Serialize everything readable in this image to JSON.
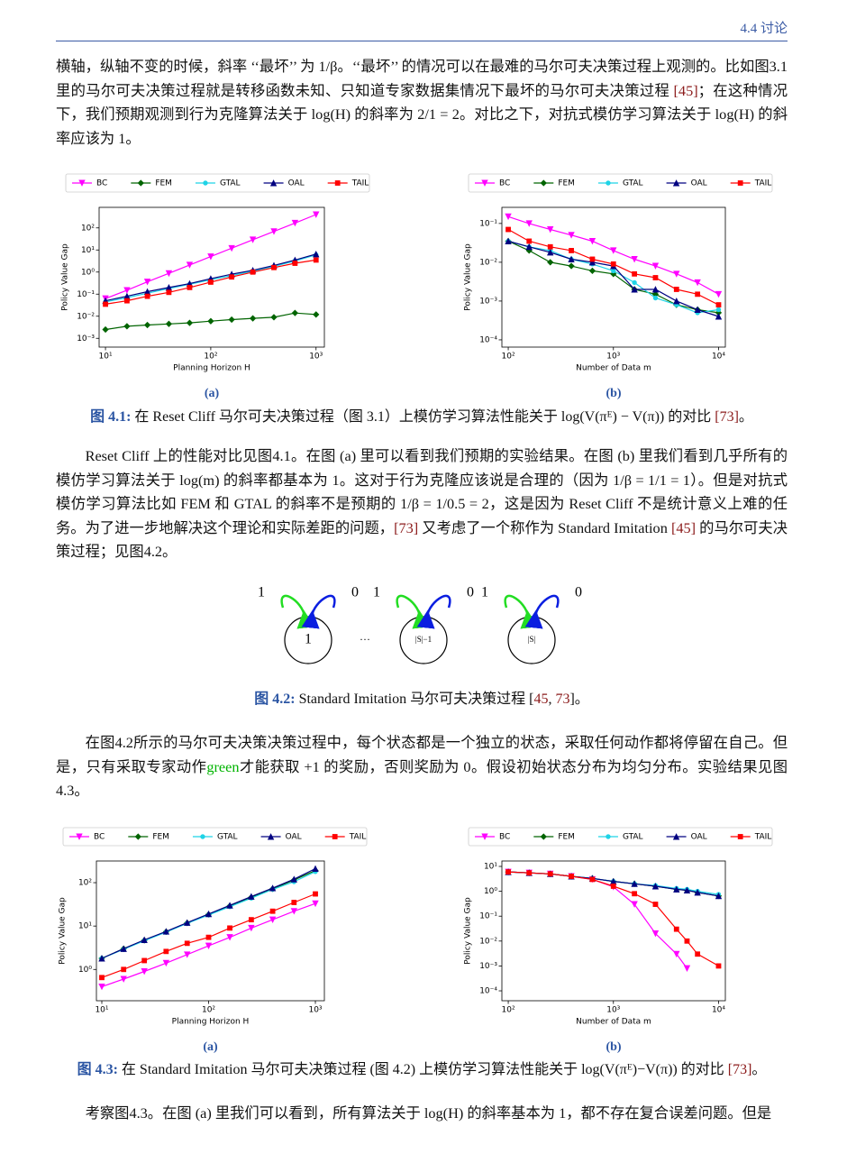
{
  "header": {
    "title": "4.4 讨论"
  },
  "paragraphs": [
    [
      "横轴，纵轴不变的时候，斜率 ‘‘最坏’’ 为 1/β。‘‘最坏’’ 的情况可以在最难的马尔可夫决策过程上观测的。比如图3.1里的马尔可夫决策过程就是转移函数未知、只知道专家数据集情况下最坏的马尔可夫决策过程 ",
      {
        "text": "[45]",
        "kind": "cite"
      },
      "；在这种情况下，我们预期观测到行为克隆算法关于 log(H) 的斜率为 2/1 = 2。对比之下，对抗式模仿学习算法关于 log(H) 的斜率应该为 1。"
    ],
    [
      "Reset Cliff 上的性能对比见图4.1。在图 (a) 里可以看到我们预期的实验结果。在图 (b) 里我们看到几乎所有的模仿学习算法关于 log(m) 的斜率都基本为 1。这对于行为克隆应该说是合理的（因为 1/β = 1/1 = 1）。但是对抗式模仿学习算法比如 FEM 和 GTAL 的斜率不是预期的 1/β = 1/0.5 = 2，这是因为 Reset Cliff 不是统计意义上难的任务。为了进一步地解决这个理论和实际差距的问题，",
      {
        "text": "[73]",
        "kind": "cite"
      },
      " 又考虑了一个称作为 Standard Imitation ",
      {
        "text": "[45]",
        "kind": "cite"
      },
      " 的马尔可夫决策过程；见图4.2。"
    ],
    [
      "在图4.2所示的马尔可夫决策决策过程中，每个状态都是一个独立的状态，采取任何动作都将停留在自己。但是，只有采取专家动作",
      {
        "text": "green",
        "kind": "green"
      },
      "才能获取 +1 的奖励，否则奖励为 0。假设初始状态分布为均匀分布。实验结果见图4.3。"
    ],
    [
      "考察图4.3。在图 (a) 里我们可以看到，所有算法关于 log(H) 的斜率基本为 1，都不存在复合误差问题。但是"
    ]
  ],
  "captions": [
    [
      {
        "text": "图 4.1:",
        "kind": "figlabel"
      },
      " 在 Reset Cliff 马尔可夫决策过程（图 3.1）上模仿学习算法性能关于 log(V(πᴱ) − V(π)) 的对比 ",
      {
        "text": "[73]",
        "kind": "cite"
      },
      "。"
    ],
    [
      {
        "text": "图 4.2:",
        "kind": "figlabel"
      },
      " Standard Imitation 马尔可夫决策过程 [",
      {
        "text": "45",
        "kind": "cite"
      },
      ", ",
      {
        "text": "73",
        "kind": "cite"
      },
      "]。"
    ],
    [
      {
        "text": "图 4.3:",
        "kind": "figlabel"
      },
      " 在 Standard Imitation 马尔可夫决策过程 (图 4.2) 上模仿学习算法性能关于 log(V(πᴱ)−V(π)) 的对比 ",
      {
        "text": "[73]",
        "kind": "cite"
      },
      "。"
    ]
  ],
  "diagram": {
    "nodes": [
      {
        "label": "1",
        "loops": [
          "1",
          "0"
        ]
      },
      {
        "label": "|S|−1",
        "loops": [
          "1",
          "0"
        ]
      },
      {
        "label": "|S|",
        "loops": [
          "1",
          "0"
        ]
      }
    ],
    "ellipsis": "···"
  },
  "chart_data": [
    {
      "type": "line",
      "panel": "(a)",
      "xlabel": "Planning Horizon H",
      "ylabel": "Policy Value Gap",
      "xscale": "log",
      "yscale": "log",
      "x": [
        10,
        16,
        25,
        40,
        63,
        100,
        158,
        251,
        398,
        631,
        1000
      ],
      "xlim": [
        8.7,
        1200
      ],
      "xticks": [
        {
          "value": 10,
          "label": "10¹"
        },
        {
          "value": 100,
          "label": "10²"
        },
        {
          "value": 1000,
          "label": "10³"
        }
      ],
      "ylim": [
        0.0004,
        850
      ],
      "yticks": [
        {
          "value": 0.001,
          "label": "10⁻³"
        },
        {
          "value": 0.01,
          "label": "10⁻²"
        },
        {
          "value": 0.1,
          "label": "10⁻¹"
        },
        {
          "value": 1,
          "label": "10⁰"
        },
        {
          "value": 10,
          "label": "10¹"
        },
        {
          "value": 100,
          "label": "10²"
        }
      ],
      "series": [
        {
          "name": "BC",
          "color": "#ff00ff",
          "marker": "v",
          "values": [
            0.063,
            0.15,
            0.36,
            0.87,
            2.1,
            5,
            12,
            29,
            69,
            166,
            400
          ]
        },
        {
          "name": "FEM",
          "color": "#006400",
          "marker": "D",
          "values": [
            0.0025,
            0.0035,
            0.004,
            0.0045,
            0.005,
            0.006,
            0.007,
            0.008,
            0.009,
            0.014,
            0.012
          ]
        },
        {
          "name": "GTAL",
          "color": "#1fd3e6",
          "marker": "P",
          "values": [
            0.045,
            0.07,
            0.11,
            0.18,
            0.28,
            0.45,
            0.7,
            1.1,
            1.8,
            3.2,
            6
          ]
        },
        {
          "name": "OAL",
          "color": "#000080",
          "marker": "^",
          "values": [
            0.05,
            0.08,
            0.13,
            0.2,
            0.3,
            0.5,
            0.8,
            1.2,
            2,
            3.5,
            6.5
          ]
        },
        {
          "name": "TAIL",
          "color": "#ff0000",
          "marker": "s",
          "values": [
            0.035,
            0.05,
            0.08,
            0.12,
            0.2,
            0.35,
            0.6,
            1,
            1.6,
            2.5,
            3.5
          ]
        }
      ]
    },
    {
      "type": "line",
      "panel": "(b)",
      "xlabel": "Number of Data m",
      "ylabel": "Policy Value Gap",
      "xscale": "log",
      "yscale": "log",
      "x": [
        100,
        158,
        251,
        398,
        631,
        1000,
        1585,
        2512,
        3981,
        6310,
        10000
      ],
      "xlim": [
        87,
        11600
      ],
      "xticks": [
        {
          "value": 100,
          "label": "10²"
        },
        {
          "value": 1000,
          "label": "10³"
        },
        {
          "value": 10000,
          "label": "10⁴"
        }
      ],
      "ylim": [
        6.5e-05,
        0.26
      ],
      "yticks": [
        {
          "value": 0.0001,
          "label": "10⁻⁴"
        },
        {
          "value": 0.001,
          "label": "10⁻³"
        },
        {
          "value": 0.01,
          "label": "10⁻²"
        },
        {
          "value": 0.1,
          "label": "10⁻¹"
        }
      ],
      "series": [
        {
          "name": "BC",
          "color": "#ff00ff",
          "marker": "v",
          "values": [
            0.15,
            0.1,
            0.07,
            0.05,
            0.035,
            0.02,
            0.012,
            0.008,
            0.005,
            0.003,
            0.0015
          ]
        },
        {
          "name": "FEM",
          "color": "#006400",
          "marker": "D",
          "values": [
            0.035,
            0.02,
            0.01,
            0.008,
            0.006,
            0.005,
            0.002,
            0.0015,
            0.0008,
            0.0006,
            0.0005
          ]
        },
        {
          "name": "GTAL",
          "color": "#1fd3e6",
          "marker": "P",
          "values": [
            0.035,
            0.025,
            0.02,
            0.012,
            0.009,
            0.006,
            0.003,
            0.0012,
            0.0008,
            0.0005,
            0.0006
          ]
        },
        {
          "name": "OAL",
          "color": "#000080",
          "marker": "^",
          "values": [
            0.035,
            0.025,
            0.018,
            0.012,
            0.01,
            0.008,
            0.002,
            0.002,
            0.001,
            0.0006,
            0.0004
          ]
        },
        {
          "name": "TAIL",
          "color": "#ff0000",
          "marker": "s",
          "values": [
            0.07,
            0.035,
            0.025,
            0.02,
            0.012,
            0.009,
            0.005,
            0.004,
            0.002,
            0.0015,
            0.0008
          ]
        }
      ]
    },
    {
      "type": "line",
      "panel": "(a)",
      "xlabel": "Planning Horizon H",
      "ylabel": "Policy Value Gap",
      "xscale": "log",
      "yscale": "log",
      "x": [
        10,
        16,
        25,
        40,
        63,
        100,
        158,
        251,
        398,
        631,
        1000
      ],
      "xlim": [
        8.9,
        1214
      ],
      "xticks": [
        {
          "value": 10,
          "label": "10¹"
        },
        {
          "value": 100,
          "label": "10²"
        },
        {
          "value": 1000,
          "label": "10³"
        }
      ],
      "ylim": [
        0.19,
        316
      ],
      "yticks": [
        {
          "value": 1,
          "label": "10⁰"
        },
        {
          "value": 10,
          "label": "10¹"
        },
        {
          "value": 100,
          "label": "10²"
        }
      ],
      "series": [
        {
          "name": "BC",
          "color": "#ff00ff",
          "marker": "v",
          "values": [
            0.4,
            0.6,
            0.9,
            1.4,
            2.2,
            3.5,
            5.5,
            9,
            14,
            22,
            33
          ]
        },
        {
          "name": "FEM",
          "color": "#006400",
          "marker": "D",
          "values": [
            1.8,
            3,
            4.7,
            7.4,
            11.8,
            18.5,
            29,
            46,
            72,
            115,
            190
          ]
        },
        {
          "name": "GTAL",
          "color": "#1fd3e6",
          "marker": "P",
          "values": [
            1.8,
            2.9,
            4.6,
            7.2,
            11.5,
            18,
            28,
            44,
            70,
            105,
            180
          ]
        },
        {
          "name": "OAL",
          "color": "#000080",
          "marker": "^",
          "values": [
            1.8,
            3,
            4.8,
            7.5,
            12,
            19,
            30,
            48,
            75,
            120,
            210
          ]
        },
        {
          "name": "TAIL",
          "color": "#ff0000",
          "marker": "s",
          "values": [
            0.65,
            1,
            1.6,
            2.6,
            4,
            5.5,
            9,
            14,
            22,
            35,
            55
          ]
        }
      ]
    },
    {
      "type": "line",
      "panel": "(b)",
      "xlabel": "Number of Data m",
      "ylabel": "Policy Value Gap",
      "xscale": "log",
      "yscale": "log",
      "x": [
        100,
        158,
        251,
        398,
        631,
        1000,
        1585,
        2512,
        3981,
        5012,
        6310,
        10000
      ],
      "xlim": [
        87,
        11600
      ],
      "xticks": [
        {
          "value": 100,
          "label": "10²"
        },
        {
          "value": 1000,
          "label": "10³"
        },
        {
          "value": 10000,
          "label": "10⁴"
        }
      ],
      "ylim": [
        4e-05,
        16.5
      ],
      "yticks": [
        {
          "value": 0.0001,
          "label": "10⁻⁴"
        },
        {
          "value": 0.001,
          "label": "10⁻³"
        },
        {
          "value": 0.01,
          "label": "10⁻²"
        },
        {
          "value": 0.1,
          "label": "10⁻¹"
        },
        {
          "value": 1,
          "label": "10⁰"
        },
        {
          "value": 10,
          "label": "10¹"
        }
      ],
      "series": [
        {
          "name": "BC",
          "color": "#ff00ff",
          "marker": "v",
          "values": [
            6,
            5.5,
            5,
            4,
            3,
            1.5,
            0.3,
            0.02,
            0.003,
            0.0008,
            null,
            null
          ]
        },
        {
          "name": "FEM",
          "color": "#006400",
          "marker": "D",
          "values": [
            6,
            5.5,
            5,
            4,
            3.3,
            2.5,
            2,
            1.6,
            1.2,
            1.1,
            0.9,
            0.65
          ]
        },
        {
          "name": "GTAL",
          "color": "#1fd3e6",
          "marker": "P",
          "values": [
            6,
            5.5,
            5,
            4,
            3.3,
            2.5,
            2,
            1.7,
            1.3,
            1.2,
            1,
            0.75
          ]
        },
        {
          "name": "OAL",
          "color": "#000080",
          "marker": "^",
          "values": [
            6,
            5.5,
            5,
            4,
            3.3,
            2.5,
            2,
            1.6,
            1.2,
            1.1,
            0.9,
            0.65
          ]
        },
        {
          "name": "TAIL",
          "color": "#ff0000",
          "marker": "s",
          "values": [
            6,
            5.5,
            5,
            4,
            3,
            1.6,
            0.8,
            0.3,
            0.03,
            0.01,
            0.003,
            0.001
          ]
        }
      ]
    }
  ]
}
